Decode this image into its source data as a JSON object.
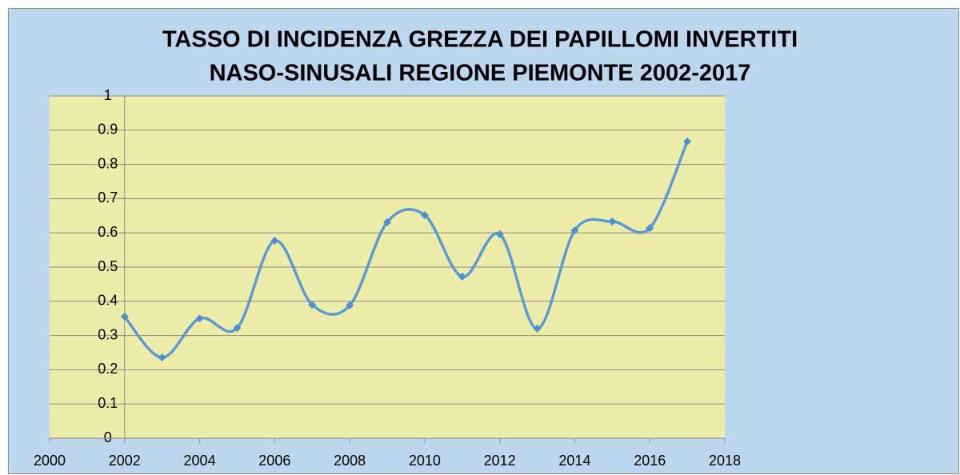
{
  "chart_data": {
    "type": "line",
    "title": [
      "TASSO DI INCIDENZA GREZZA DEI PAPILLOMI INVERTITI",
      "NASO-SINUSALI REGIONE PIEMONTE 2002-2017"
    ],
    "x": [
      2002,
      2003,
      2004,
      2005,
      2006,
      2007,
      2008,
      2009,
      2010,
      2011,
      2012,
      2013,
      2014,
      2015,
      2016,
      2017
    ],
    "series": [
      {
        "color": "#5b9bd5",
        "values": [
          0.355,
          0.236,
          0.35,
          0.322,
          0.577,
          0.39,
          0.388,
          0.631,
          0.652,
          0.472,
          0.596,
          0.32,
          0.607,
          0.633,
          0.614,
          0.867
        ]
      }
    ],
    "smooth": true,
    "xlim": [
      2000,
      2018
    ],
    "xticks": [
      2000,
      2002,
      2004,
      2006,
      2008,
      2010,
      2012,
      2014,
      2016,
      2018
    ],
    "ylim": [
      0,
      1
    ],
    "yticks": [
      0,
      0.1,
      0.2,
      0.3,
      0.4,
      0.5,
      0.6,
      0.7,
      0.8,
      0.9,
      1
    ],
    "y_axis_at": 2002,
    "grid": true
  }
}
